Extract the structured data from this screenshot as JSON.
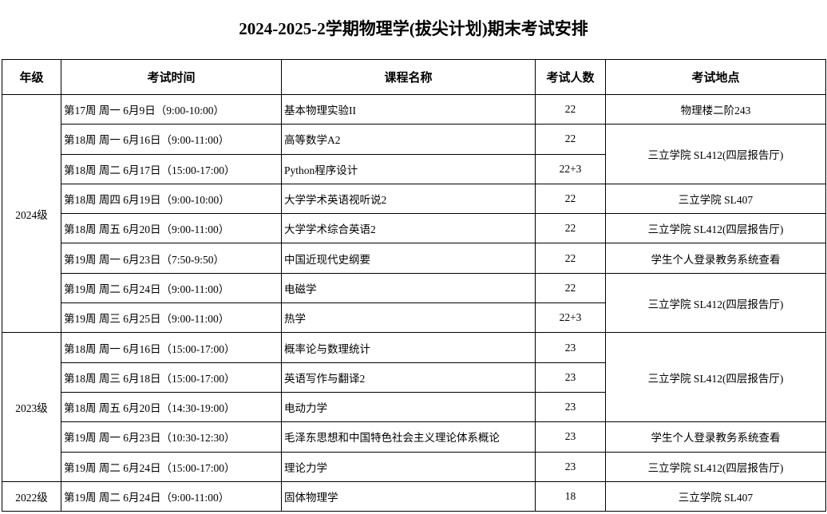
{
  "title": "2024-2025-2学期物理学(拔尖计划)期末考试安排",
  "table": {
    "header": [
      "年级",
      "考试时间",
      "课程名称",
      "考试人数",
      "考试地点"
    ],
    "years": [
      "2024级",
      "2023级",
      "2022级"
    ],
    "rows": [
      {
        "time": "第17周 周一 6月9日（9:00-10:00）",
        "course": "基本物理实验II",
        "count": 22
      },
      {
        "time": "第18周 周一 6月16日（9:00-11:00）",
        "course": "高等数学A2",
        "count": 22
      },
      {
        "time": "第18周 周二 6月17日（15:00-17:00）",
        "course": "Python程序设计",
        "count": "22+3"
      },
      {
        "time": "第18周 周四 6月19日（9:00-10:00）",
        "course": "大学学术英语视听说2",
        "count": 22
      },
      {
        "time": "第18周 周五 6月20日（9:00-11:00）",
        "course": "大学学术综合英语2",
        "count": 22
      },
      {
        "time": "第19周 周一 6月23日（7:50-9:50）",
        "course": "中国近现代史纲要",
        "count": 22
      },
      {
        "time": "第19周 周二 6月24日（9:00-11:00）",
        "course": "电磁学",
        "count": 22
      },
      {
        "time": "第19周 周三 6月25日（9:00-11:00）",
        "course": "热学",
        "count": "22+3"
      },
      {
        "time": "第18周 周一 6月16日（15:00-17:00）",
        "course": "概率论与数理统计",
        "count": 23
      },
      {
        "time": "第18周 周三 6月18日（15:00-17:00）",
        "course": "英语写作与翻译2",
        "count": 23
      },
      {
        "time": "第18周 周五 6月20日（14:30-19:00）",
        "course": "电动力学",
        "count": 23
      },
      {
        "time": "第19周 周一 6月23日（10:30-12:30）",
        "course": "毛泽东思想和中国特色社会主义理论体系概论",
        "count": 23
      },
      {
        "time": "第19周 周二 6月24日（15:00-17:00）",
        "course": "理论力学",
        "count": 23
      },
      {
        "time": "第19周 周二 6月24日（9:00-11:00）",
        "course": "固体物理学",
        "count": 18
      }
    ],
    "locations": [
      "物理楼二阶243",
      "三立学院 SL412(四层报告厅)",
      "三立学院 SL407",
      "三立学院 SL412(四层报告厅)",
      "学生个人登录教务系统查看",
      "三立学院 SL412(四层报告厅)",
      "三立学院 SL412(四层报告厅)",
      "学生个人登录教务系统查看",
      "三立学院 SL412(四层报告厅)",
      "三立学院 SL407"
    ]
  }
}
